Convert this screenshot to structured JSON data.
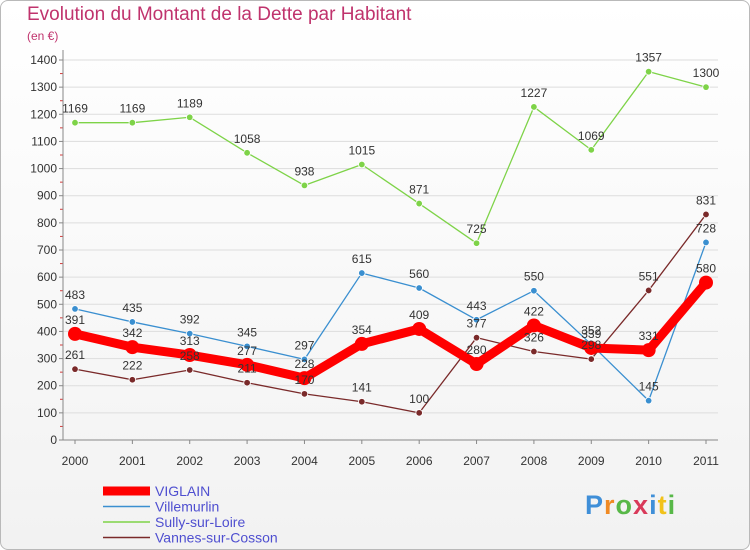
{
  "chart_data": {
    "type": "line",
    "title": "Evolution du Montant de la Dette par Habitant",
    "unit": "(en €)",
    "xlabel": "",
    "ylabel": "",
    "ylim": [
      0,
      1400
    ],
    "yticks": [
      0,
      100,
      200,
      300,
      400,
      500,
      600,
      700,
      800,
      900,
      1000,
      1100,
      1200,
      1300,
      1400
    ],
    "categories": [
      "2000",
      "2001",
      "2002",
      "2003",
      "2004",
      "2005",
      "2006",
      "2007",
      "2008",
      "2009",
      "2010",
      "2011"
    ],
    "legend_position": "bottom-left",
    "series": [
      {
        "name": "VIGLAIN",
        "color": "#ff0000",
        "values": [
          391,
          342,
          313,
          277,
          228,
          354,
          409,
          280,
          422,
          339,
          331,
          580
        ]
      },
      {
        "name": "Villemurlin",
        "color": "#3a8fd0",
        "values": [
          483,
          435,
          392,
          345,
          297,
          615,
          560,
          443,
          550,
          352,
          145,
          728
        ]
      },
      {
        "name": "Sully-sur-Loire",
        "color": "#7ed348",
        "values": [
          1169,
          1169,
          1189,
          1058,
          938,
          1015,
          871,
          725,
          1227,
          1069,
          1357,
          1300
        ]
      },
      {
        "name": "Vannes-sur-Cosson",
        "color": "#7a2a2a",
        "values": [
          261,
          222,
          258,
          211,
          170,
          141,
          100,
          377,
          326,
          298,
          551,
          831
        ]
      }
    ]
  },
  "brand": {
    "letters": [
      "P",
      "r",
      "o",
      "x",
      "i",
      "t",
      "i"
    ]
  }
}
